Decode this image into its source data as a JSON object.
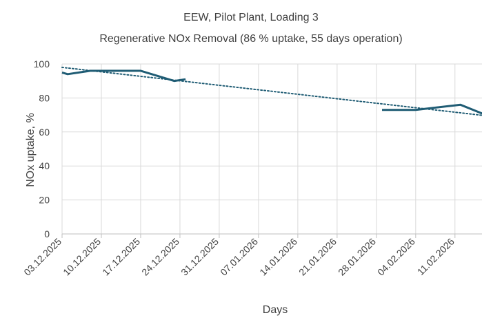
{
  "chart_data": {
    "type": "line",
    "title": "EEW, Pilot Plant, Loading 3",
    "subtitle": "Regenerative NOx Removal (86 % uptake, 55 days operation)",
    "xlabel": "Days",
    "ylabel": "NOx uptake, %",
    "x_type": "date",
    "xlim": [
      "2025-12-03",
      "2026-02-18"
    ],
    "ylim": [
      0,
      100
    ],
    "y_ticks": [
      "0",
      "20",
      "40",
      "60",
      "80",
      "100"
    ],
    "x_tick_labels": [
      "03.12.2025",
      "10.12.2025",
      "17.12.2025",
      "24.12.2025",
      "31.12.2025",
      "07.01.2026",
      "14.01.2026",
      "21.01.2026",
      "28.01.2026",
      "04.02.2026",
      "11.02.2026"
    ],
    "x_ticks": [
      "2025-12-03",
      "2025-12-10",
      "2025-12-17",
      "2025-12-24",
      "2025-12-31",
      "2026-01-07",
      "2026-01-14",
      "2026-01-21",
      "2026-01-28",
      "2026-02-04",
      "2026-02-11"
    ],
    "grid": true,
    "legend": "none",
    "series": [
      {
        "color": "#1f5c74",
        "style": "solid",
        "segments": [
          [
            {
              "x": "2025-12-03",
              "y": 95
            },
            {
              "x": "2025-12-04",
              "y": 94
            },
            {
              "x": "2025-12-08",
              "y": 96
            },
            {
              "x": "2025-12-17",
              "y": 96
            },
            {
              "x": "2025-12-23",
              "y": 90
            },
            {
              "x": "2025-12-25",
              "y": 91
            }
          ],
          [
            {
              "x": "2026-01-29",
              "y": 73
            },
            {
              "x": "2026-02-04",
              "y": 73
            },
            {
              "x": "2026-02-12",
              "y": 76
            },
            {
              "x": "2026-02-18",
              "y": 68
            }
          ]
        ]
      },
      {
        "style": "dotted",
        "trendline": "linear",
        "color": "#1f5c74",
        "points": [
          {
            "x": "2025-12-03",
            "y": 98
          },
          {
            "x": "2026-02-18",
            "y": 69
          }
        ]
      }
    ]
  }
}
